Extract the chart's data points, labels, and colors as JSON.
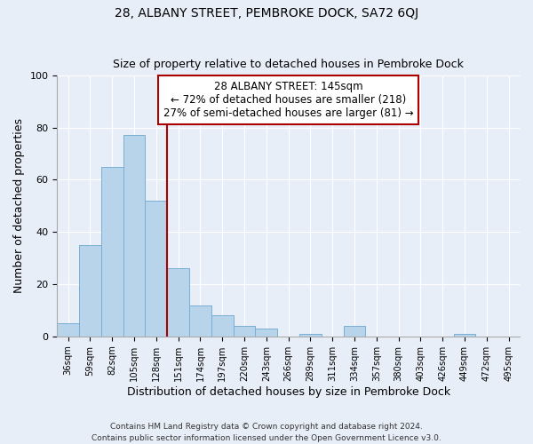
{
  "title": "28, ALBANY STREET, PEMBROKE DOCK, SA72 6QJ",
  "subtitle": "Size of property relative to detached houses in Pembroke Dock",
  "xlabel": "Distribution of detached houses by size in Pembroke Dock",
  "ylabel": "Number of detached properties",
  "bin_labels": [
    "36sqm",
    "59sqm",
    "82sqm",
    "105sqm",
    "128sqm",
    "151sqm",
    "174sqm",
    "197sqm",
    "220sqm",
    "243sqm",
    "266sqm",
    "289sqm",
    "311sqm",
    "334sqm",
    "357sqm",
    "380sqm",
    "403sqm",
    "426sqm",
    "449sqm",
    "472sqm",
    "495sqm"
  ],
  "bar_heights": [
    5,
    35,
    65,
    77,
    52,
    26,
    12,
    8,
    4,
    3,
    0,
    1,
    0,
    4,
    0,
    0,
    0,
    0,
    1,
    0,
    0
  ],
  "bar_color": "#b8d4eb",
  "bar_edge_color": "#7aaed4",
  "vline_color": "#aa0000",
  "annotation_title": "28 ALBANY STREET: 145sqm",
  "annotation_line1": "← 72% of detached houses are smaller (218)",
  "annotation_line2": "27% of semi-detached houses are larger (81) →",
  "annotation_box_color": "#ffffff",
  "annotation_box_edge": "#aa0000",
  "ylim": [
    0,
    100
  ],
  "footer1": "Contains HM Land Registry data © Crown copyright and database right 2024.",
  "footer2": "Contains public sector information licensed under the Open Government Licence v3.0.",
  "background_color": "#e8eef8",
  "title_fontsize": 10,
  "xlabel_fontsize": 9,
  "ylabel_fontsize": 9,
  "annotation_fontsize": 8.5
}
